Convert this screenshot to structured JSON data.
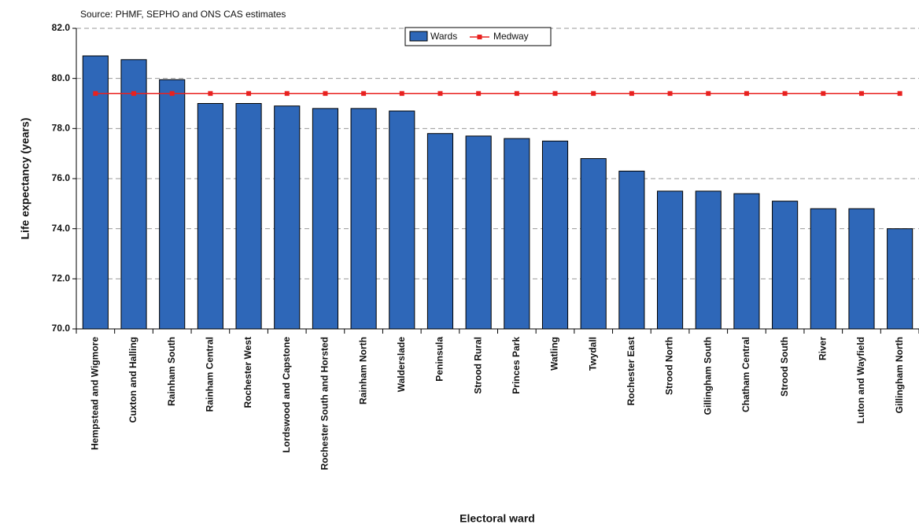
{
  "chart_data": {
    "type": "bar",
    "subtitle": "Source:  PHMF, SEPHO and ONS CAS estimates",
    "y_label": "Life expectancy (years)",
    "x_label": "Electoral ward",
    "categories": [
      "Hempstead and Wigmore",
      "Cuxton and Halling",
      "Rainham South",
      "Rainham Central",
      "Rochester West",
      "Lordswood and Capstone",
      "Rochester South and Horsted",
      "Rainham North",
      "Walderslade",
      "Peninsula",
      "Strood Rural",
      "Princes Park",
      "Watling",
      "Twydall",
      "Rochester East",
      "Strood North",
      "Gillingham South",
      "Chatham Central",
      "Strood South",
      "River",
      "Luton and Wayfield",
      "Gillingham North"
    ],
    "series": [
      {
        "name": "Wards",
        "color": "#2e67b8",
        "values": [
          80.9,
          80.75,
          79.95,
          79.0,
          79.0,
          78.9,
          78.8,
          78.8,
          78.7,
          77.8,
          77.7,
          77.6,
          77.5,
          76.8,
          76.3,
          75.5,
          75.5,
          75.4,
          75.1,
          74.8,
          74.8,
          74.0
        ]
      },
      {
        "name": "Medway",
        "color": "#e8211f",
        "values": [
          79.4,
          79.4,
          79.4,
          79.4,
          79.4,
          79.4,
          79.4,
          79.4,
          79.4,
          79.4,
          79.4,
          79.4,
          79.4,
          79.4,
          79.4,
          79.4,
          79.4,
          79.4,
          79.4,
          79.4,
          79.4,
          79.4
        ]
      }
    ],
    "ylim": [
      70,
      82
    ],
    "yticks": [
      {
        "value": 70,
        "label": "70.0"
      },
      {
        "value": 72,
        "label": "72.0"
      },
      {
        "value": 74,
        "label": "74.0"
      },
      {
        "value": 76,
        "label": "76.0"
      },
      {
        "value": 78,
        "label": "78.0"
      },
      {
        "value": 80,
        "label": "80.0"
      },
      {
        "value": 82,
        "label": "82.0"
      }
    ],
    "grid": true,
    "legend": "top"
  }
}
